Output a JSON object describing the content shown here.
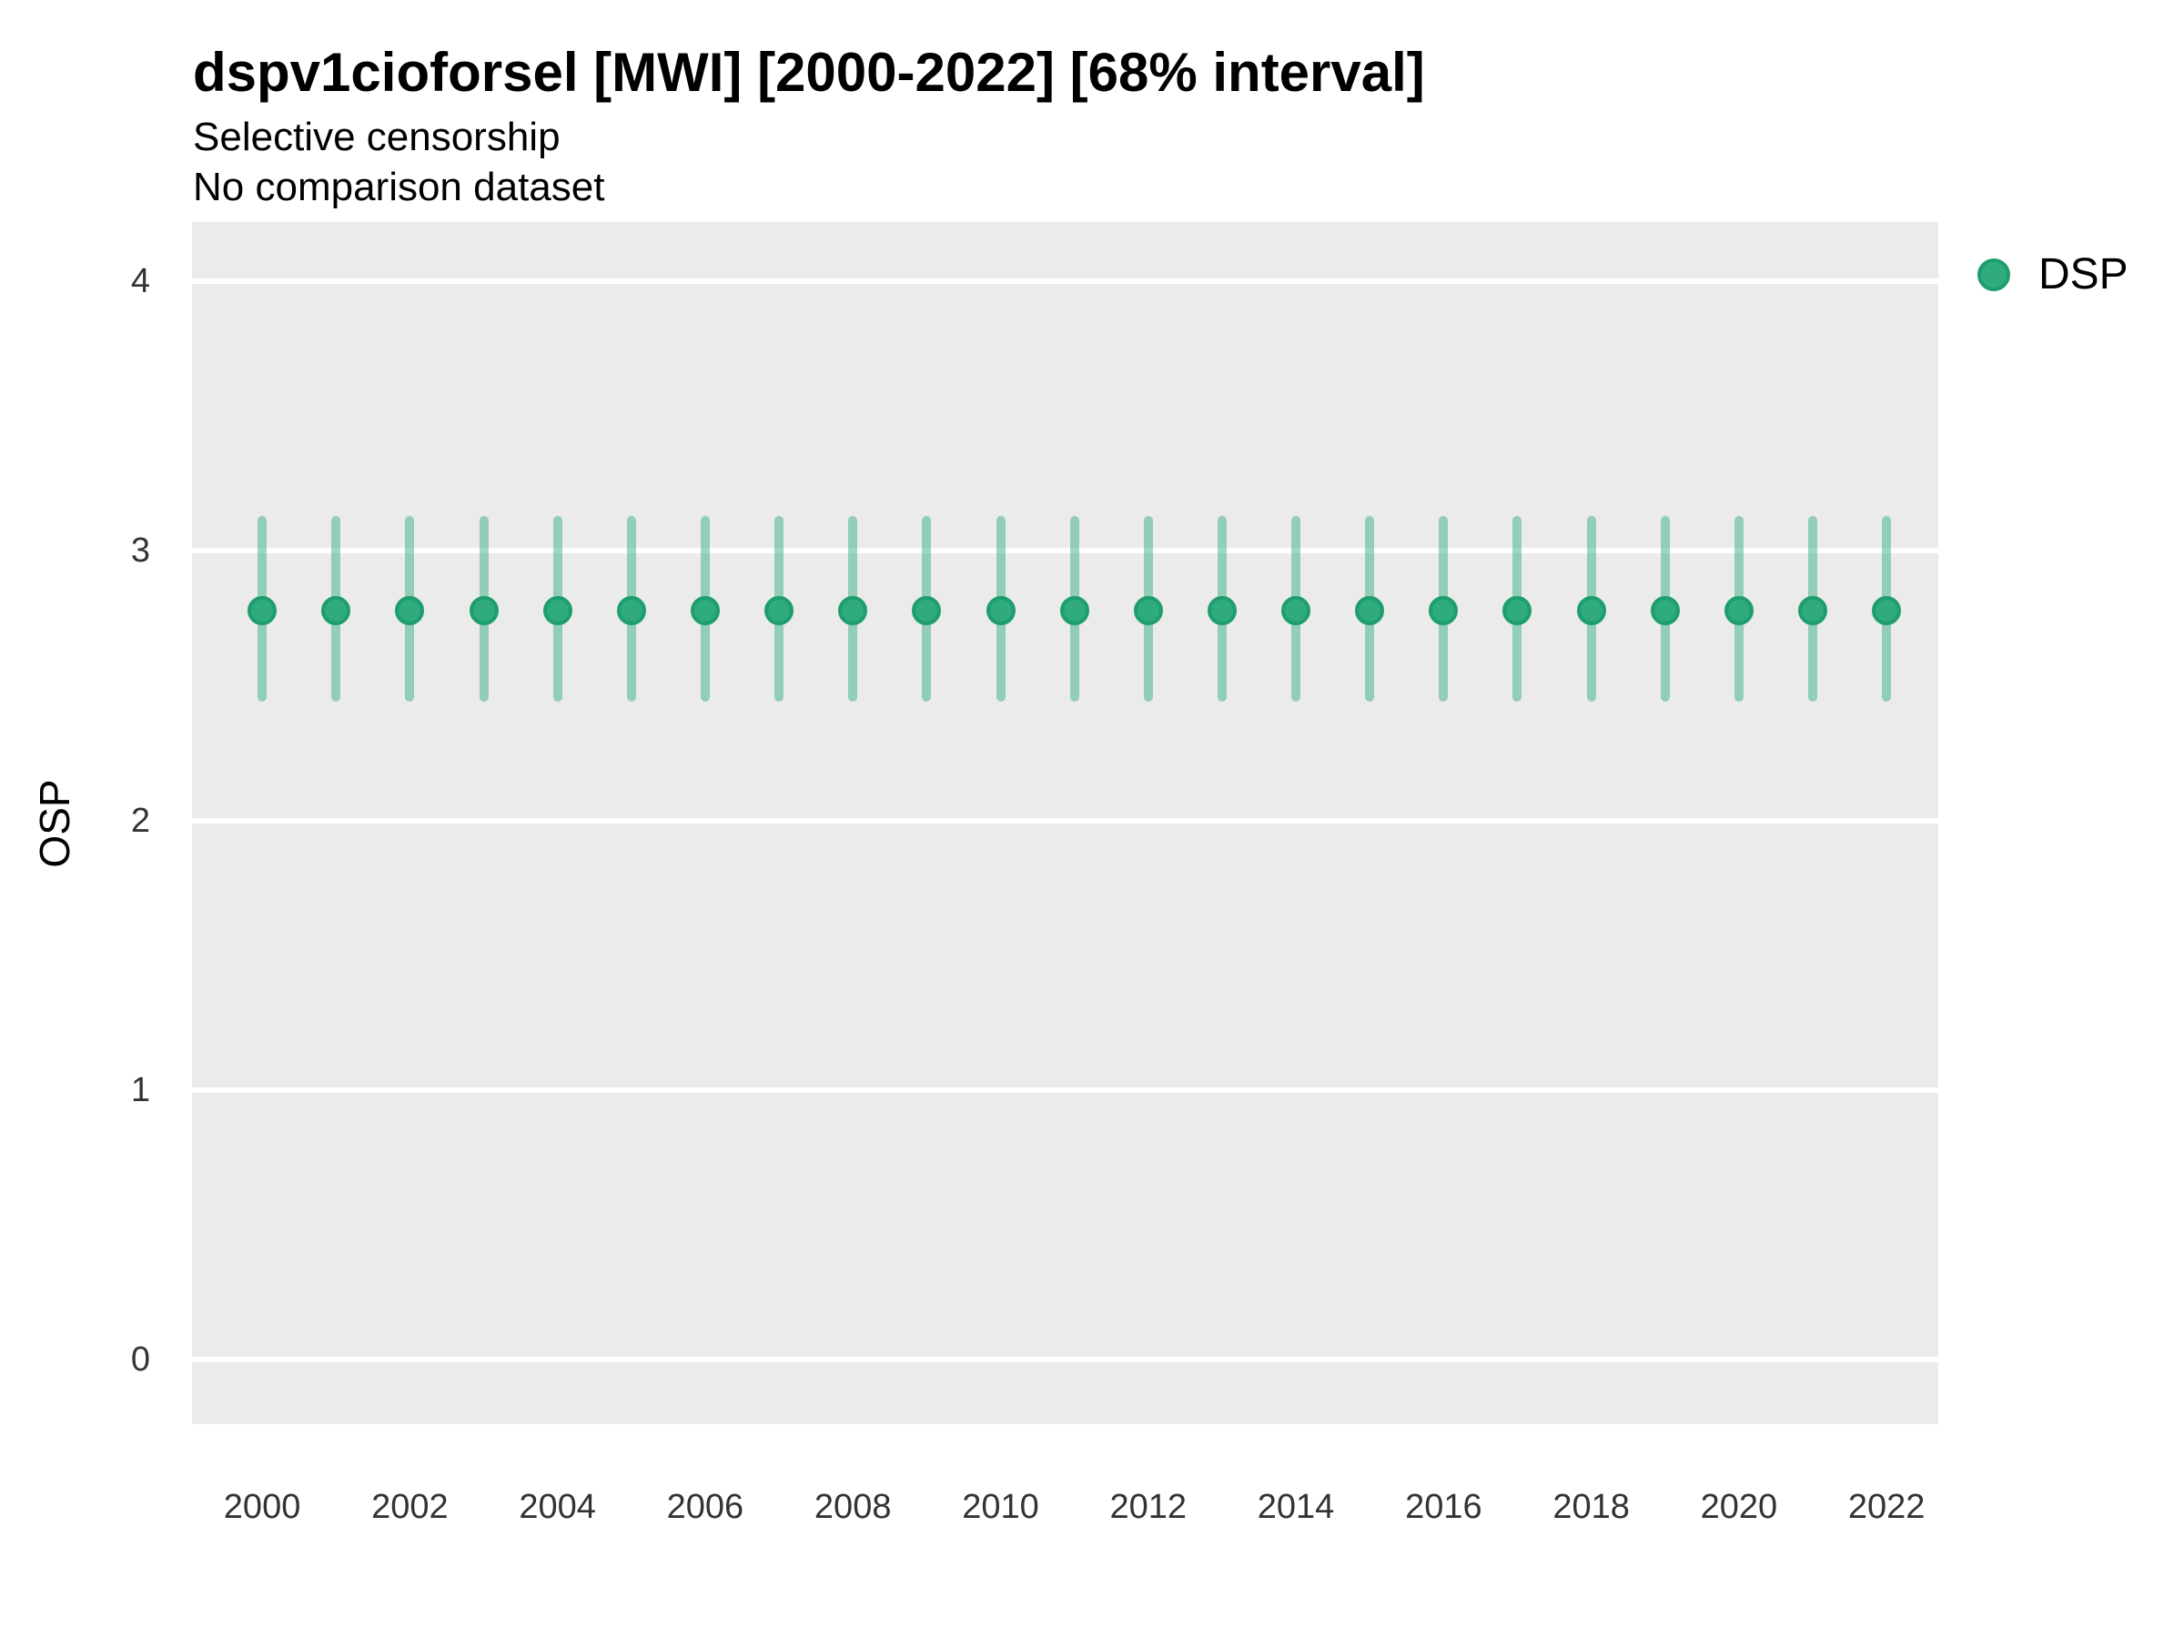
{
  "header": {
    "title": "dspv1cioforsel [MWI] [2000-2022] [68% interval]",
    "subtitle1": "Selective censorship",
    "subtitle2": "No comparison dataset"
  },
  "axes": {
    "y_title": "OSP",
    "x_title": ""
  },
  "legend": {
    "position": "right-top",
    "items": [
      {
        "label": "DSP",
        "marker": "circle",
        "marker_color": "#2FAB7D"
      }
    ]
  },
  "colors": {
    "panel_background": "#EBEBEB",
    "gridline": "#FFFFFF",
    "point_fill": "#2FAB7D",
    "point_stroke": "#1E9E6C",
    "interval_bar": "rgba(47,171,125,0.48)",
    "title_text": "#000000",
    "tick_text": "#333333"
  },
  "chart_data": {
    "type": "pointrange",
    "title": "dspv1cioforsel [MWI] [2000-2022] [68% interval]",
    "subtitle": [
      "Selective censorship",
      "No comparison dataset"
    ],
    "xlabel": "",
    "ylabel": "OSP",
    "interval_label": "68% interval",
    "x": [
      2000,
      2001,
      2002,
      2003,
      2004,
      2005,
      2006,
      2007,
      2008,
      2009,
      2010,
      2011,
      2012,
      2013,
      2014,
      2015,
      2016,
      2017,
      2018,
      2019,
      2020,
      2021,
      2022
    ],
    "series": [
      {
        "name": "DSP",
        "estimate": [
          2.78,
          2.78,
          2.78,
          2.78,
          2.78,
          2.78,
          2.78,
          2.78,
          2.78,
          2.78,
          2.78,
          2.78,
          2.78,
          2.78,
          2.78,
          2.78,
          2.78,
          2.78,
          2.78,
          2.78,
          2.78,
          2.78,
          2.78
        ],
        "lower": [
          2.44,
          2.44,
          2.44,
          2.44,
          2.44,
          2.44,
          2.44,
          2.44,
          2.44,
          2.44,
          2.44,
          2.44,
          2.44,
          2.44,
          2.44,
          2.44,
          2.44,
          2.44,
          2.44,
          2.44,
          2.44,
          2.44,
          2.44
        ],
        "upper": [
          3.13,
          3.13,
          3.13,
          3.13,
          3.13,
          3.13,
          3.13,
          3.13,
          3.13,
          3.13,
          3.13,
          3.13,
          3.13,
          3.13,
          3.13,
          3.13,
          3.13,
          3.13,
          3.13,
          3.13,
          3.13,
          3.13,
          3.13
        ]
      }
    ],
    "xticks": [
      2000,
      2002,
      2004,
      2006,
      2008,
      2010,
      2012,
      2014,
      2016,
      2018,
      2020,
      2022
    ],
    "yticks": [
      0,
      1,
      2,
      3,
      4
    ],
    "ylim": [
      -0.24,
      4.22
    ],
    "xlim": [
      1999.05,
      2022.7
    ],
    "grid": "horizontal-major-only",
    "legend_position": "right-top"
  }
}
